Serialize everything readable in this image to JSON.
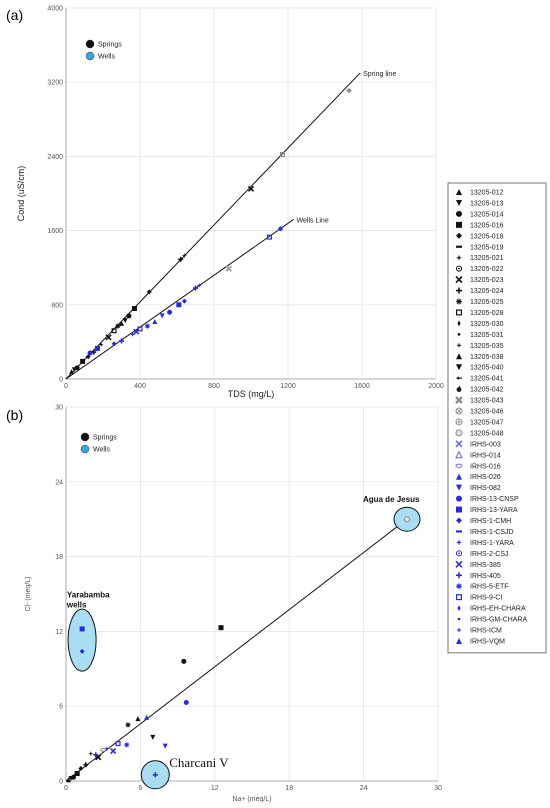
{
  "figure": {
    "panel_a_label": "(a)",
    "panel_b_label": "(b)"
  },
  "chart_data": [
    {
      "type": "scatter",
      "panel": "(a)",
      "title": "",
      "xlabel": "TDS (mg/L)",
      "ylabel": "Cond (uS/cm)",
      "xlim": [
        0,
        2000
      ],
      "ylim": [
        0,
        4000
      ],
      "xticks": [
        "0",
        "400",
        "800",
        "1200",
        "1600",
        "2000"
      ],
      "yticks": [
        "0",
        "800",
        "1600",
        "2400",
        "3200",
        "4000"
      ],
      "grid": true,
      "mini_legend": [
        {
          "label": "Springs",
          "color": "#111111"
        },
        {
          "label": "Wells",
          "color": "#3aa6d8"
        }
      ],
      "lines": [
        {
          "label": "Spring line",
          "from": [
            0,
            0
          ],
          "to": [
            1590,
            3300
          ]
        },
        {
          "label": "Wells Line",
          "from": [
            0,
            0
          ],
          "to": [
            1230,
            1720
          ]
        }
      ],
      "springs": [
        [
          30,
          80
        ],
        [
          45,
          100
        ],
        [
          60,
          120
        ],
        [
          90,
          190
        ],
        [
          120,
          240
        ],
        [
          150,
          290
        ],
        [
          190,
          370
        ],
        [
          230,
          450
        ],
        [
          260,
          520
        ],
        [
          280,
          570
        ],
        [
          300,
          600
        ],
        [
          320,
          630
        ],
        [
          340,
          680
        ],
        [
          370,
          760
        ],
        [
          450,
          940
        ],
        [
          620,
          1290
        ],
        [
          640,
          1330
        ],
        [
          1000,
          2050
        ],
        [
          1170,
          2420
        ],
        [
          1530,
          3110
        ]
      ],
      "wells": [
        [
          130,
          280
        ],
        [
          170,
          330
        ],
        [
          260,
          380
        ],
        [
          300,
          410
        ],
        [
          360,
          480
        ],
        [
          380,
          510
        ],
        [
          400,
          540
        ],
        [
          440,
          570
        ],
        [
          480,
          620
        ],
        [
          520,
          680
        ],
        [
          560,
          720
        ],
        [
          610,
          800
        ],
        [
          640,
          840
        ],
        [
          700,
          980
        ],
        [
          720,
          1010
        ],
        [
          880,
          1190
        ],
        [
          1100,
          1530
        ],
        [
          1160,
          1620
        ]
      ]
    },
    {
      "type": "scatter",
      "panel": "(b)",
      "title": "",
      "xlabel": "Na+ (meq/L)",
      "ylabel": "Cl- (meq/L)",
      "xlim": [
        0,
        30
      ],
      "ylim": [
        0,
        30
      ],
      "xticks": [
        "0",
        "6",
        "12",
        "18",
        "24",
        "30"
      ],
      "yticks": [
        "0",
        "6",
        "12",
        "18",
        "24",
        "30"
      ],
      "grid": true,
      "mini_legend": [
        {
          "label": "Springs",
          "color": "#111111"
        },
        {
          "label": "Wells",
          "color": "#3aa6d8"
        }
      ],
      "lines": [
        {
          "from": [
            0,
            0
          ],
          "to": [
            27.5,
            21
          ]
        }
      ],
      "annotations": [
        {
          "label": "Agua de Jesus",
          "x": 28,
          "y": 21
        },
        {
          "label": "Yarabamba\nwells",
          "x": 1.2,
          "y": 11.2
        },
        {
          "label": "Charcani V",
          "x": 7.2,
          "y": 0.5
        }
      ],
      "springs": [
        [
          0.2,
          0.1
        ],
        [
          0.4,
          0.2
        ],
        [
          0.6,
          0.3
        ],
        [
          0.9,
          0.6
        ],
        [
          1.2,
          1.0
        ],
        [
          1.6,
          1.3
        ],
        [
          2.0,
          2.2
        ],
        [
          2.6,
          1.9
        ],
        [
          3.0,
          2.5
        ],
        [
          5.0,
          4.5
        ],
        [
          5.8,
          5.0
        ],
        [
          7.0,
          3.5
        ],
        [
          9.5,
          9.6
        ],
        [
          12.5,
          12.3
        ],
        [
          27.5,
          21.0
        ]
      ],
      "wells": [
        [
          1.3,
          12.2
        ],
        [
          1.3,
          10.4
        ],
        [
          2.4,
          2.1
        ],
        [
          3.3,
          2.6
        ],
        [
          3.8,
          2.4
        ],
        [
          4.2,
          3.0
        ],
        [
          4.9,
          2.9
        ],
        [
          6.5,
          5.1
        ],
        [
          8.0,
          2.8
        ],
        [
          9.7,
          6.3
        ],
        [
          7.2,
          0.5
        ]
      ],
      "legend": [
        {
          "label": "13205-012",
          "marker": "tri-up",
          "color": "#111111"
        },
        {
          "label": "13205-013",
          "marker": "tri-down",
          "color": "#111111"
        },
        {
          "label": "13205-014",
          "marker": "circle",
          "color": "#111111"
        },
        {
          "label": "13205-016",
          "marker": "square",
          "color": "#111111"
        },
        {
          "label": "13205-018",
          "marker": "diamond",
          "color": "#111111"
        },
        {
          "label": "13205-019",
          "marker": "dash",
          "color": "#111111"
        },
        {
          "label": "13205-021",
          "marker": "star4",
          "color": "#111111"
        },
        {
          "label": "13205-022",
          "marker": "ring-dot",
          "color": "#111111"
        },
        {
          "label": "13205-023",
          "marker": "x",
          "color": "#111111"
        },
        {
          "label": "13205-024",
          "marker": "plus",
          "color": "#111111"
        },
        {
          "label": "13205-025",
          "marker": "asterisk",
          "color": "#111111"
        },
        {
          "label": "13205-028",
          "marker": "open-square",
          "color": "#111111"
        },
        {
          "label": "13205-030",
          "marker": "thin-diamond",
          "color": "#111111"
        },
        {
          "label": "13205-031",
          "marker": "small-dot",
          "color": "#111111"
        },
        {
          "label": "13205-035",
          "marker": "small-plus",
          "color": "#111111"
        },
        {
          "label": "13205-038",
          "marker": "tri-up",
          "color": "#111111"
        },
        {
          "label": "13205-040",
          "marker": "tri-down",
          "color": "#111111"
        },
        {
          "label": "13205-041",
          "marker": "arrow",
          "color": "#111111"
        },
        {
          "label": "13205-042",
          "marker": "apple",
          "color": "#111111"
        },
        {
          "label": "13205-043",
          "marker": "big-x",
          "color": "#888888"
        },
        {
          "label": "13205-046",
          "marker": "open-x-circle",
          "color": "#888888"
        },
        {
          "label": "13205-047",
          "marker": "open-plus-circle",
          "color": "#888888"
        },
        {
          "label": "13205-048",
          "marker": "open-circle",
          "color": "#888888"
        },
        {
          "label": "IRHS-003",
          "marker": "x",
          "color": "#6a6ad0"
        },
        {
          "label": "IRHS-014",
          "marker": "open-tri",
          "color": "#6a6ad0"
        },
        {
          "label": "IRHS-016",
          "marker": "open-oval",
          "color": "#6a6ad0"
        },
        {
          "label": "IRHS-026",
          "marker": "tri-up",
          "color": "#2a2ad8"
        },
        {
          "label": "IRHS-082",
          "marker": "tri-down",
          "color": "#2a2ad8"
        },
        {
          "label": "IRHS-13-CNSP",
          "marker": "circle",
          "color": "#2a2ad8"
        },
        {
          "label": "IRHS-13-YARA",
          "marker": "square",
          "color": "#2a2ad8"
        },
        {
          "label": "IRHS-1-CMH",
          "marker": "diamond",
          "color": "#2a2ad8"
        },
        {
          "label": "IRHS-1-CSJD",
          "marker": "dash",
          "color": "#2a2ad8"
        },
        {
          "label": "IRHS-1-YARA",
          "marker": "star4",
          "color": "#2a2ad8"
        },
        {
          "label": "IRHS-2-CSJ",
          "marker": "ring-dot",
          "color": "#2a2ad8"
        },
        {
          "label": "IRHS-385",
          "marker": "x",
          "color": "#2a2ad8"
        },
        {
          "label": "IRHS-405",
          "marker": "plus",
          "color": "#2a2ad8"
        },
        {
          "label": "IRHS-5-ETF",
          "marker": "asterisk",
          "color": "#2a2ad8"
        },
        {
          "label": "IRHS-9-CI",
          "marker": "open-square",
          "color": "#2a2ad8"
        },
        {
          "label": "IRHS-EH-CHARA",
          "marker": "thin-diamond",
          "color": "#2a2ad8"
        },
        {
          "label": "IRHS-GM-CHARA",
          "marker": "small-dot",
          "color": "#2a2ad8"
        },
        {
          "label": "IRHS-ICM",
          "marker": "small-plus",
          "color": "#2a2ad8"
        },
        {
          "label": "IRHS-VQM",
          "marker": "tri-up",
          "color": "#2a2ad8"
        }
      ]
    }
  ]
}
